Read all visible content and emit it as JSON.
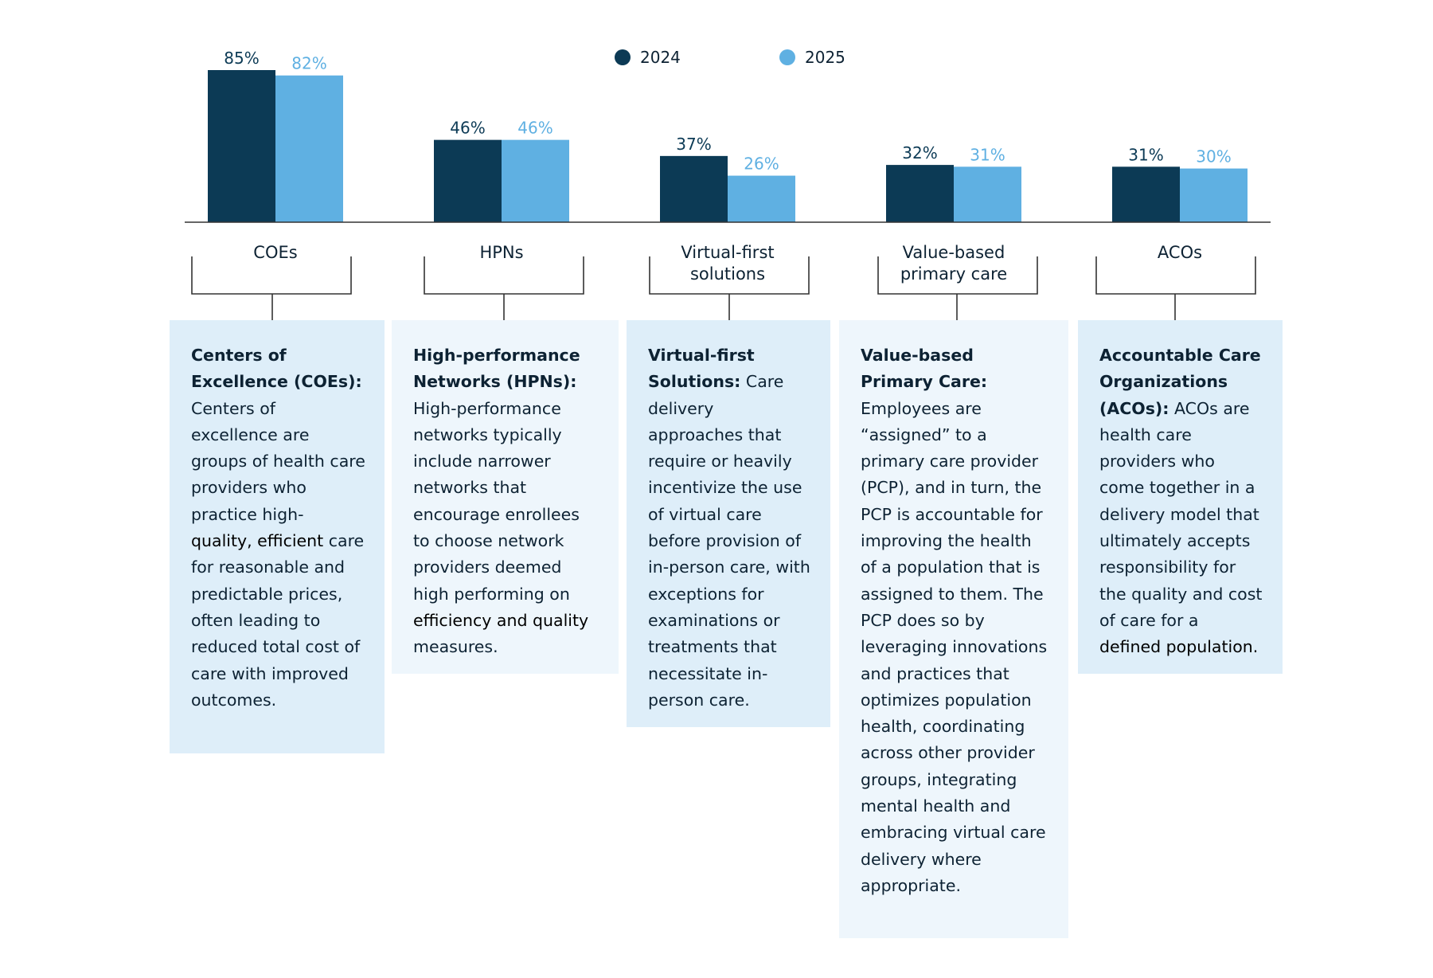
{
  "colors": {
    "series_2024": "#0c3a55",
    "series_2025": "#5fb0e2",
    "panel_dark": "#deeef9",
    "panel_light": "#eef6fc",
    "axis": "#333333"
  },
  "legend": [
    {
      "label": "2024",
      "color": "#0c3a55"
    },
    {
      "label": "2025",
      "color": "#5fb0e2"
    }
  ],
  "chart_data": {
    "type": "bar",
    "categories": [
      "COEs",
      "HPNs",
      "Virtual-first solutions",
      "Value-based primary care",
      "ACOs"
    ],
    "category_lines": [
      [
        "COEs"
      ],
      [
        "HPNs"
      ],
      [
        "Virtual-first",
        "solutions"
      ],
      [
        "Value-based",
        "primary care"
      ],
      [
        "ACOs"
      ]
    ],
    "series": [
      {
        "name": "2024",
        "values": [
          85,
          46,
          37,
          32,
          31
        ],
        "labels": [
          "85%",
          "46%",
          "37%",
          "32%",
          "31%"
        ]
      },
      {
        "name": "2025",
        "values": [
          82,
          46,
          26,
          31,
          30
        ],
        "labels": [
          "82%",
          "46%",
          "26%",
          "31%",
          "30%"
        ]
      }
    ],
    "ylim": [
      0,
      100
    ],
    "legend_position": "top-center",
    "grid": false
  },
  "definitions": [
    {
      "term": "Centers of Excellence (COEs):",
      "text": "Centers of excellence are groups of health care providers who practice high-",
      "emphasis": "quality, efficient",
      "text_after": "care for reasonable and predictable prices, often leading to reduced total cost of care with improved outcomes."
    },
    {
      "term": "High-performance Networks (HPNs):",
      "text": "High-performance networks typically include narrower networks that encourage enrollees to choose network providers deemed high performing on",
      "emphasis": "efficiency and quality",
      "text_after": "measures."
    },
    {
      "term": "Virtual-first Solutions:",
      "text": "Care delivery approaches that require or heavily incentivize the use of virtual care before provision of in-person care, with exceptions for examinations or treatments that necessitate in-person care.",
      "emphasis": "",
      "text_after": ""
    },
    {
      "term": "Value-based Primary Care:",
      "text": "Employees are “assigned” to a primary care provider (PCP), and in turn, the PCP is accountable for improving the health of a population that is assigned to them. The PCP does so by leveraging innovations and practices that optimizes population health, coordinating across other provider groups, integrating mental health and embracing virtual care delivery where appropriate.",
      "emphasis": "",
      "text_after": ""
    },
    {
      "term": "Accountable Care Organizations (ACOs):",
      "text": "ACOs are health care providers who come together in a delivery model that ultimately accepts responsibility for the quality and cost of care for a",
      "emphasis": "defined population.",
      "text_after": ""
    }
  ]
}
